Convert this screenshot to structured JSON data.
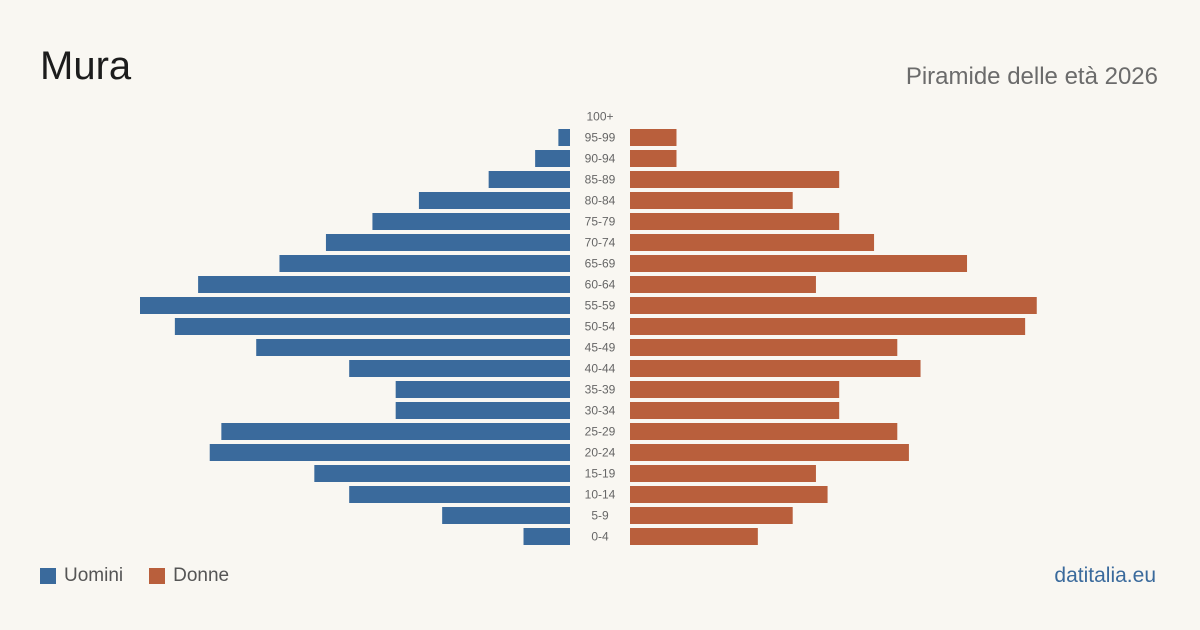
{
  "header": {
    "title": "Mura",
    "subtitle": "Piramide delle età 2026"
  },
  "legend": {
    "men_label": "Uomini",
    "women_label": "Donne"
  },
  "footer": {
    "brand": "datitalia.eu"
  },
  "colors": {
    "men": "#3a6a9c",
    "women": "#b95f3c",
    "background": "#f9f7f2",
    "label": "#666666"
  },
  "chart_data": {
    "type": "bar",
    "orientation": "horizontal-pyramid",
    "categories": [
      "100+",
      "95-99",
      "90-94",
      "85-89",
      "80-84",
      "75-79",
      "70-74",
      "65-69",
      "60-64",
      "55-59",
      "50-54",
      "45-49",
      "40-44",
      "35-39",
      "30-34",
      "25-29",
      "20-24",
      "15-19",
      "10-14",
      "5-9",
      "0-4"
    ],
    "series": [
      {
        "name": "Uomini",
        "values": [
          0,
          1,
          3,
          7,
          13,
          17,
          21,
          25,
          32,
          37,
          34,
          27,
          19,
          15,
          15,
          30,
          31,
          22,
          19,
          11,
          4
        ]
      },
      {
        "name": "Donne",
        "values": [
          0,
          4,
          4,
          18,
          14,
          18,
          21,
          29,
          16,
          35,
          34,
          23,
          25,
          18,
          18,
          23,
          24,
          16,
          17,
          14,
          11
        ]
      }
    ],
    "xlim": [
      0,
      37
    ],
    "grid": false,
    "legend_position": "bottom-left"
  }
}
